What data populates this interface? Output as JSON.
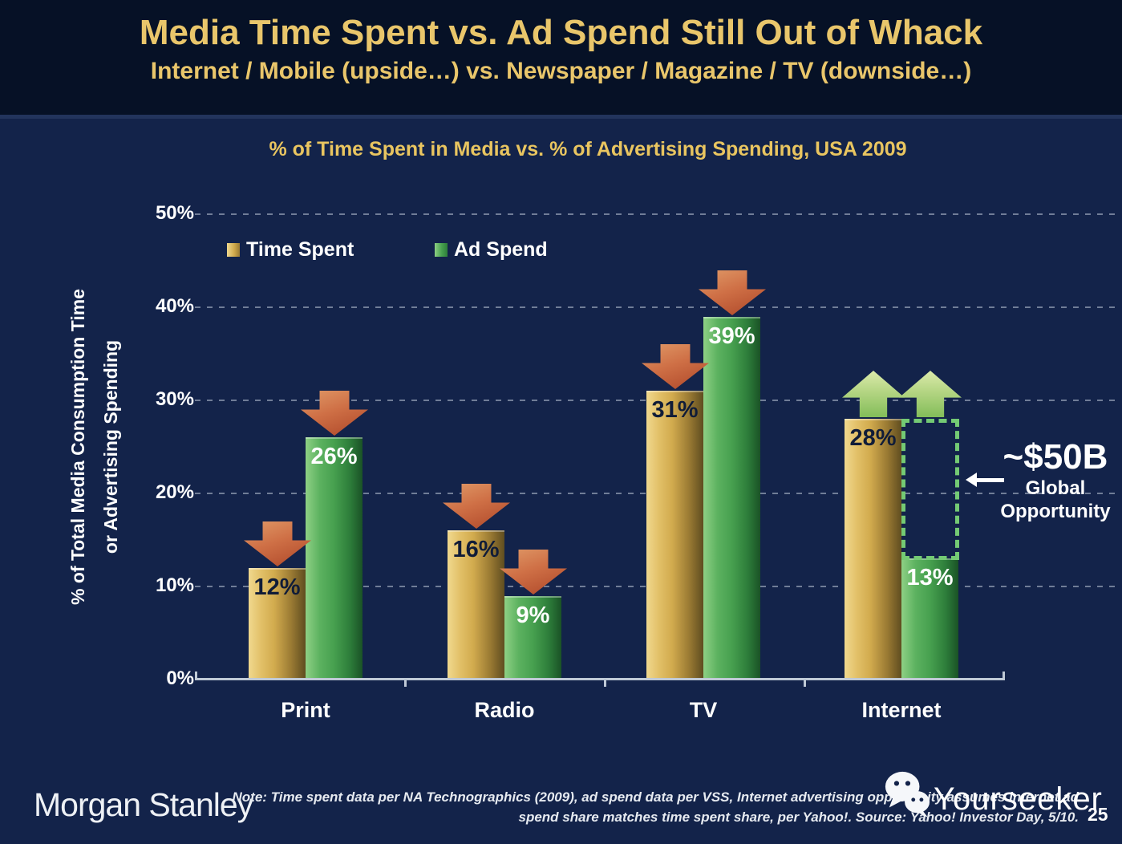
{
  "header": {
    "title": "Media Time Spent vs. Ad Spend Still Out of Whack",
    "subtitle": "Internet / Mobile (upside…) vs. Newspaper / Magazine / TV (downside…)"
  },
  "chart": {
    "title": "% of Time Spent in Media vs. % of Advertising Spending, USA 2009",
    "y_axis_label_line1": "% of Total Media Consumption Time",
    "y_axis_label_line2": "or Advertising Spending"
  },
  "chart_data": {
    "type": "bar",
    "categories": [
      "Print",
      "Radio",
      "TV",
      "Internet"
    ],
    "series": [
      {
        "name": "Time Spent",
        "values": [
          12,
          16,
          31,
          28
        ],
        "color": "#d9b55a",
        "label_color": "#101c38"
      },
      {
        "name": "Ad Spend",
        "values": [
          26,
          9,
          39,
          13
        ],
        "color": "#4fa754",
        "label_color": "#ffffff"
      }
    ],
    "trend_arrows": [
      "down",
      "down",
      "down",
      "up"
    ],
    "title": "% of Time Spent in Media vs. % of Advertising Spending, USA 2009",
    "xlabel": "",
    "ylabel": "% of Total Media Consumption Time or Advertising Spending",
    "ylim": [
      0,
      50
    ],
    "yticks": [
      0,
      10,
      20,
      30,
      40,
      50
    ],
    "grid": "horizontal dashed",
    "legend_position": "top-left inside plot",
    "arrow_down_color": "#c2603d",
    "arrow_up_color": "#a7cf78"
  },
  "annotation": {
    "value": "~$50B",
    "line1": "Global",
    "line2": "Opportunity",
    "box_from_pct": 13,
    "box_to_pct": 28,
    "box_color": "#74ca74"
  },
  "footer": {
    "logo": "Morgan Stanley",
    "note_line1": "Note: Time spent data per NA Technographics (2009), ad spend data per VSS, Internet advertising opportunity assumes internet ad",
    "note_line2": "spend share matches time spent share, per Yahoo!. Source: Yahoo! Investor Day, 5/10.",
    "watermark": "Yourseeker",
    "page": "25"
  }
}
